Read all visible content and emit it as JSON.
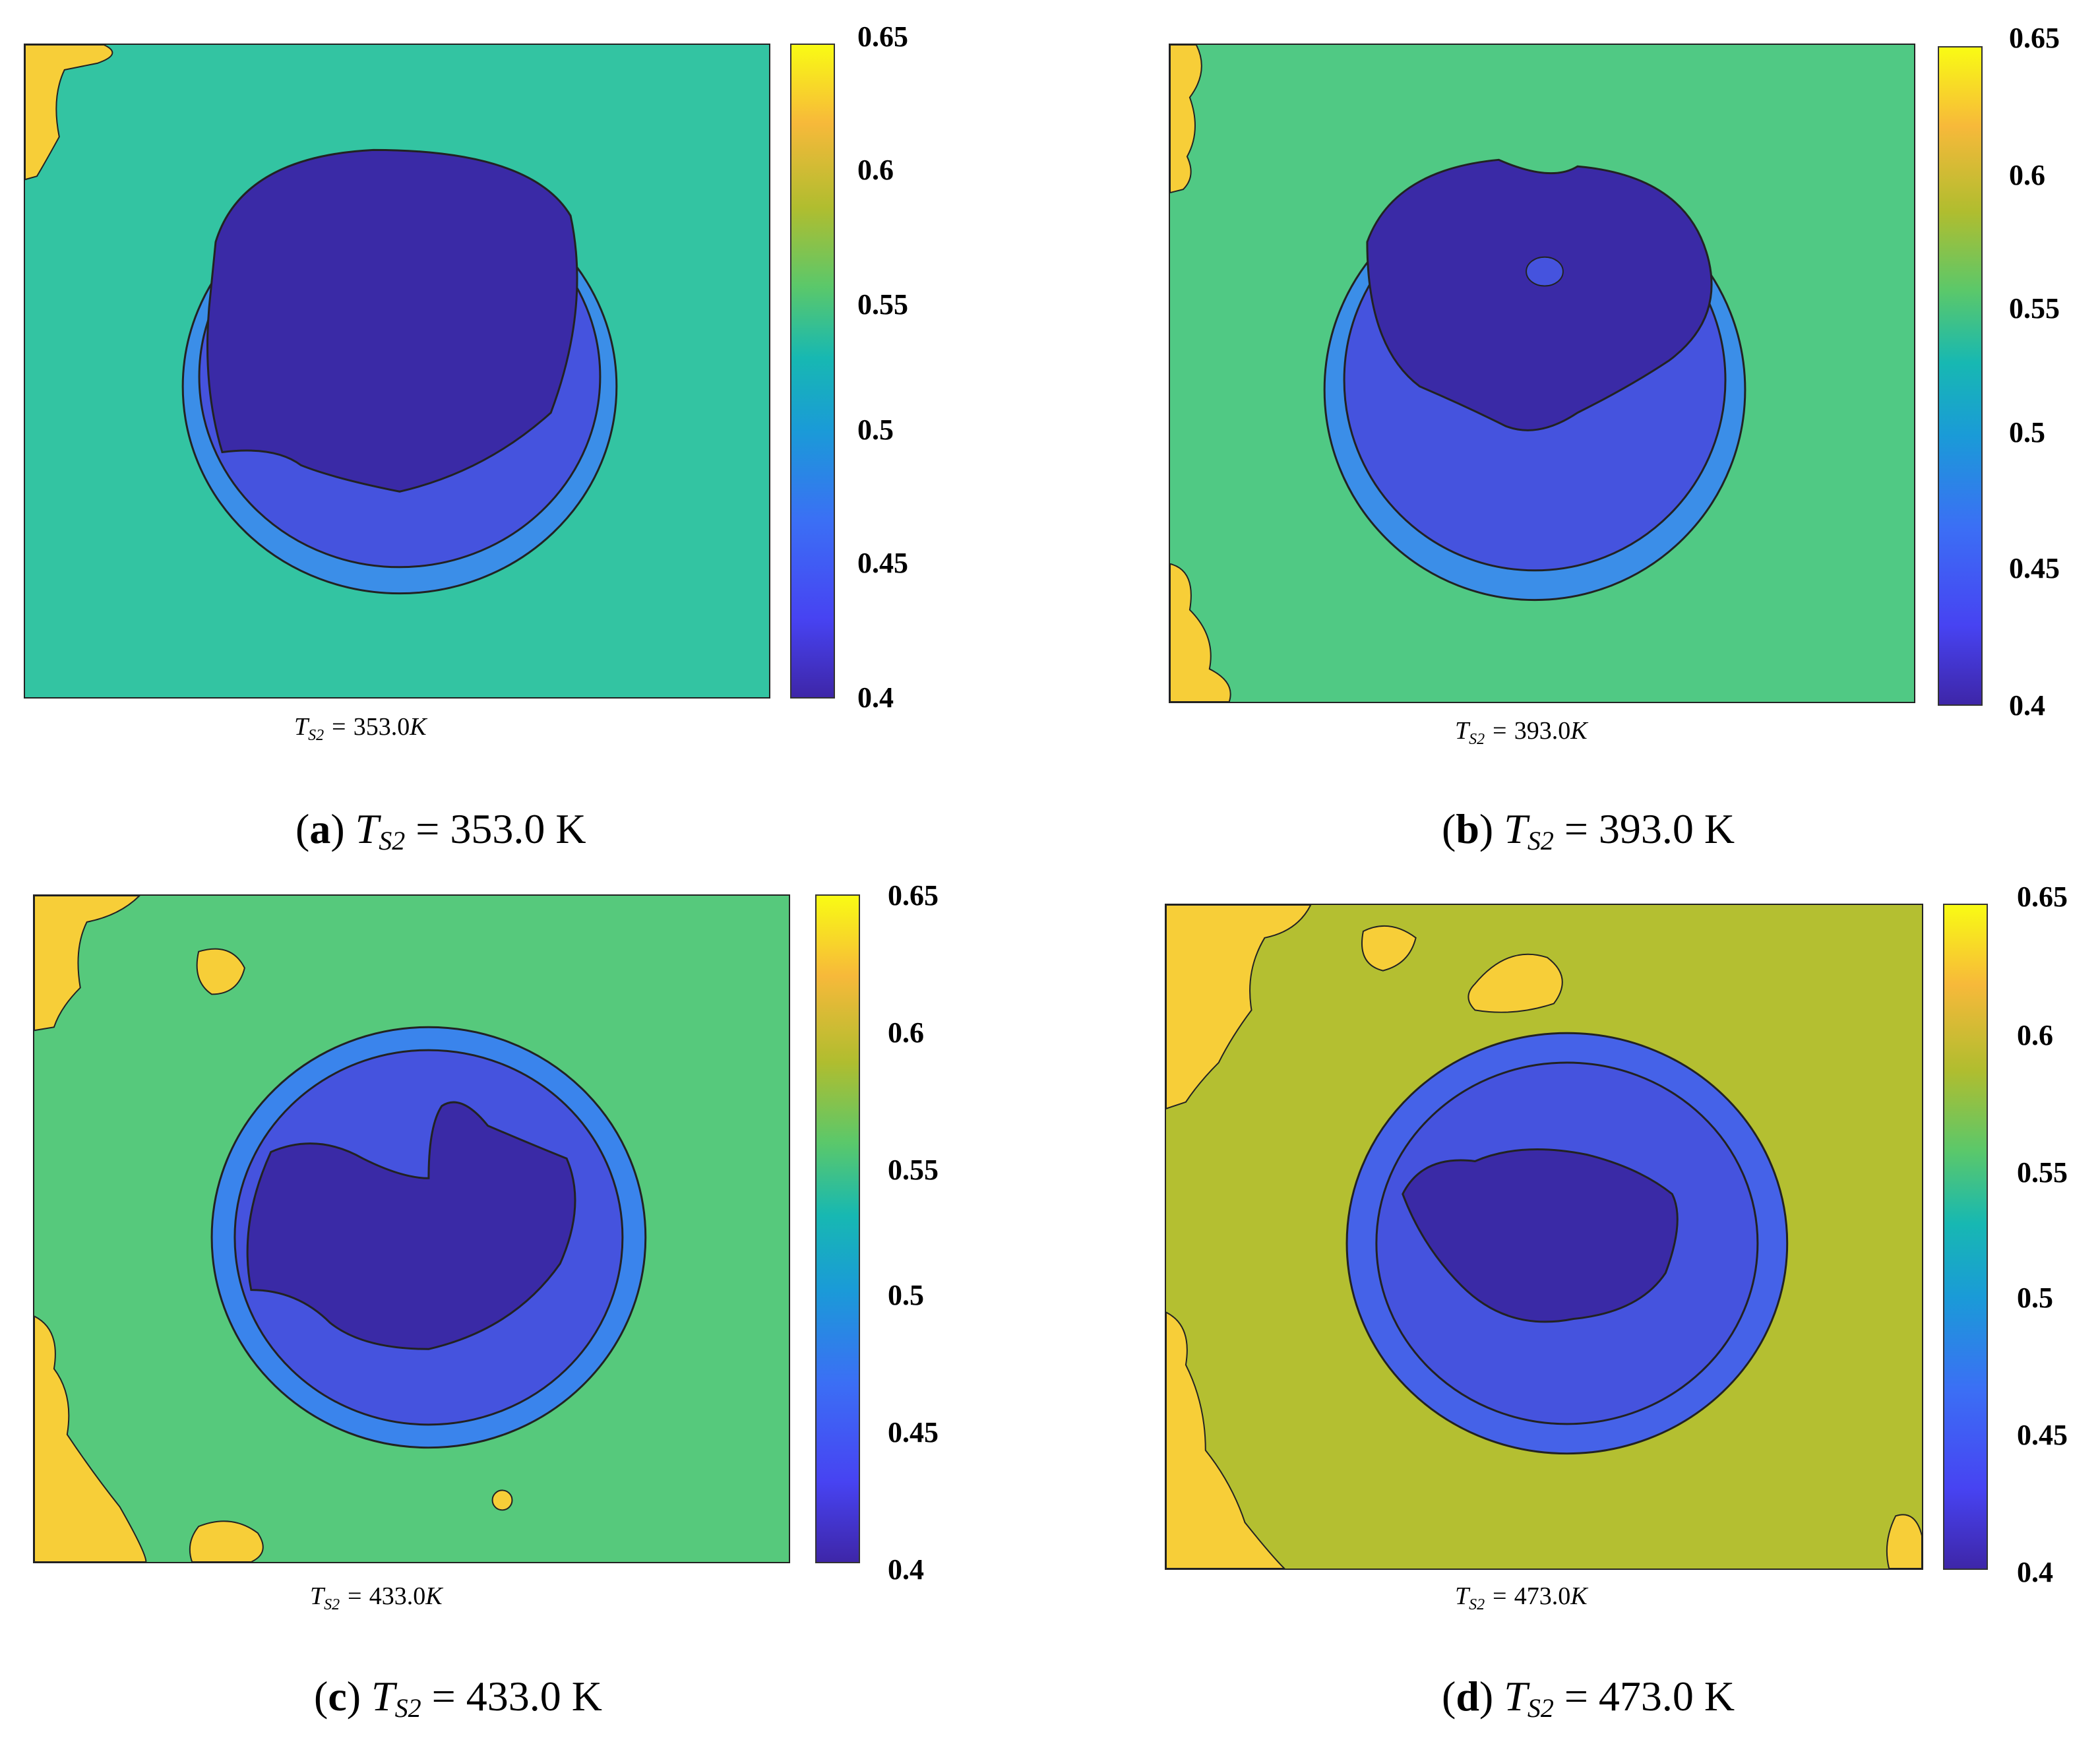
{
  "colormap": {
    "ticks": [
      "0.65",
      "0.6",
      "0.55",
      "0.5",
      "0.45",
      "0.4"
    ],
    "min": 0.4,
    "max": 0.65
  },
  "panels": [
    {
      "letter": "a",
      "symbol": "T",
      "subscript": "S2",
      "value": "353.0",
      "unit": "K",
      "xlabel_value": "353.0",
      "xlabel_unit": "K",
      "background_color": "#33c4a2",
      "outer_ring_color": "#3b8ee8",
      "mid_ring_color": "#4553de",
      "core_color": "#3a2aa6",
      "spot_color": "#f7ce38"
    },
    {
      "letter": "b",
      "symbol": "T",
      "subscript": "S2",
      "value": "393.0",
      "unit": "K",
      "xlabel_value": "393.0",
      "xlabel_unit": "K",
      "background_color": "#50c984",
      "outer_ring_color": "#3b8ee8",
      "mid_ring_color": "#4553de",
      "core_color": "#3a2aa6",
      "spot_color": "#f7ce38"
    },
    {
      "letter": "c",
      "symbol": "T",
      "subscript": "S2",
      "value": "433.0",
      "unit": "K",
      "xlabel_value": "433.0",
      "xlabel_unit": "K",
      "background_color": "#56c97c",
      "outer_ring_color": "#3a84ec",
      "mid_ring_color": "#4553de",
      "core_color": "#3a2aa6",
      "spot_color": "#f7ce38"
    },
    {
      "letter": "d",
      "symbol": "T",
      "subscript": "S2",
      "value": "473.0",
      "unit": "K",
      "xlabel_value": "473.0",
      "xlabel_unit": "K",
      "background_color": "#b4bf31",
      "outer_ring_color": "#4562e8",
      "mid_ring_color": "#4553de",
      "core_color": "#3a2aa6",
      "spot_color": "#f7ce38"
    }
  ],
  "chart_data": [
    {
      "type": "heatmap",
      "title": "(a) T_S2 = 353.0 K",
      "xlabel": "T_S2 = 353.0K",
      "colorbar_range": [
        0.4,
        0.65
      ],
      "colorbar_ticks": [
        0.4,
        0.45,
        0.5,
        0.55,
        0.6,
        0.65
      ],
      "background_value": 0.53,
      "droplet_core_value": 0.41,
      "droplet_rim_value": 0.47
    },
    {
      "type": "heatmap",
      "title": "(b) T_S2 = 393.0 K",
      "xlabel": "T_S2 = 393.0K",
      "colorbar_range": [
        0.4,
        0.65
      ],
      "colorbar_ticks": [
        0.4,
        0.45,
        0.5,
        0.55,
        0.6,
        0.65
      ],
      "background_value": 0.55,
      "droplet_core_value": 0.41,
      "droplet_rim_value": 0.47
    },
    {
      "type": "heatmap",
      "title": "(c) T_S2 = 433.0 K",
      "xlabel": "T_S2 = 433.0K",
      "colorbar_range": [
        0.4,
        0.65
      ],
      "colorbar_ticks": [
        0.4,
        0.45,
        0.5,
        0.55,
        0.6,
        0.65
      ],
      "background_value": 0.56,
      "droplet_core_value": 0.42,
      "droplet_rim_value": 0.47
    },
    {
      "type": "heatmap",
      "title": "(d) T_S2 = 473.0 K",
      "xlabel": "T_S2 = 473.0K",
      "colorbar_range": [
        0.4,
        0.65
      ],
      "colorbar_ticks": [
        0.4,
        0.45,
        0.5,
        0.55,
        0.6,
        0.65
      ],
      "background_value": 0.59,
      "droplet_core_value": 0.42,
      "droplet_rim_value": 0.46
    }
  ]
}
